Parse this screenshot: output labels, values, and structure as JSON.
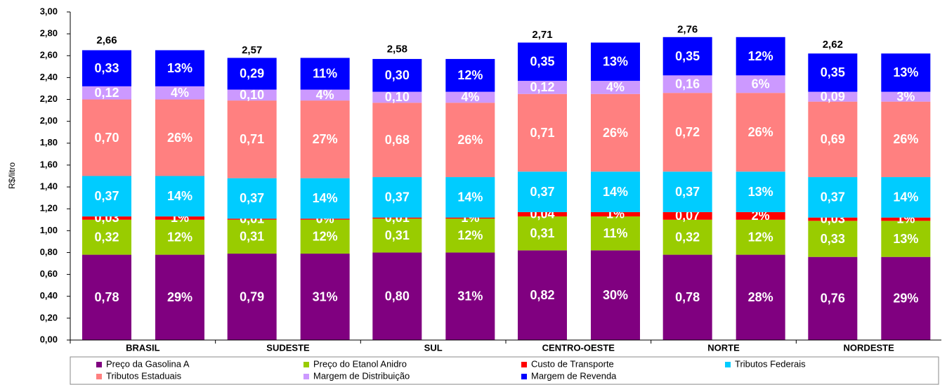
{
  "chart_data": {
    "type": "stacked_bar",
    "ylabel": "R$/litro",
    "ylim": [
      0,
      3
    ],
    "yticks": [
      {
        "value": 0,
        "label": "0,00"
      },
      {
        "value": 0.2,
        "label": "0,20"
      },
      {
        "value": 0.4,
        "label": "0,40"
      },
      {
        "value": 0.6,
        "label": "0,60"
      },
      {
        "value": 0.8,
        "label": "0,80"
      },
      {
        "value": 1.0,
        "label": "1,00"
      },
      {
        "value": 1.2,
        "label": "1,20"
      },
      {
        "value": 1.4,
        "label": "1,40"
      },
      {
        "value": 1.6,
        "label": "1,60"
      },
      {
        "value": 1.8,
        "label": "1,80"
      },
      {
        "value": 2.0,
        "label": "2,00"
      },
      {
        "value": 2.2,
        "label": "2,20"
      },
      {
        "value": 2.4,
        "label": "2,40"
      },
      {
        "value": 2.6,
        "label": "2,60"
      },
      {
        "value": 2.8,
        "label": "2,80"
      },
      {
        "value": 3.0,
        "label": "3,00"
      }
    ],
    "categories": [
      "BRASIL",
      "SUDESTE",
      "SUL",
      "CENTRO-OESTE",
      "NORTE",
      "NORDESTE"
    ],
    "totals": [
      2.66,
      2.57,
      2.58,
      2.71,
      2.76,
      2.62
    ],
    "total_labels": [
      "2,66",
      "2,57",
      "2,58",
      "2,71",
      "2,76",
      "2,62"
    ],
    "series": [
      {
        "name": "Preço da Gasolina A",
        "color": "#800080",
        "values": [
          0.78,
          0.79,
          0.8,
          0.82,
          0.78,
          0.76
        ],
        "value_labels": [
          "0,78",
          "0,79",
          "0,80",
          "0,82",
          "0,78",
          "0,76"
        ],
        "shares": [
          29,
          31,
          31,
          30,
          28,
          29
        ],
        "share_labels": [
          "29%",
          "31%",
          "31%",
          "30%",
          "28%",
          "29%"
        ]
      },
      {
        "name": "Preço do Etanol Anidro",
        "color": "#99cc00",
        "values": [
          0.32,
          0.31,
          0.31,
          0.31,
          0.32,
          0.33
        ],
        "value_labels": [
          "0,32",
          "0,31",
          "0,31",
          "0,31",
          "0,32",
          "0,33"
        ],
        "shares": [
          12,
          12,
          12,
          11,
          12,
          13
        ],
        "share_labels": [
          "12%",
          "12%",
          "12%",
          "11%",
          "12%",
          "13%"
        ]
      },
      {
        "name": "Custo de Transporte",
        "color": "#ff0000",
        "values": [
          0.03,
          0.01,
          0.01,
          0.04,
          0.07,
          0.03
        ],
        "value_labels": [
          "0,03",
          "0,01",
          "0,01",
          "0,04",
          "0,07",
          "0,03"
        ],
        "shares": [
          1,
          0,
          1,
          1,
          2,
          1
        ],
        "share_labels": [
          "1%",
          "0%",
          "1%",
          "1%",
          "2%",
          "1%"
        ]
      },
      {
        "name": "Tributos Federais",
        "color": "#00ccff",
        "values": [
          0.37,
          0.37,
          0.37,
          0.37,
          0.37,
          0.37
        ],
        "value_labels": [
          "0,37",
          "0,37",
          "0,37",
          "0,37",
          "0,37",
          "0,37"
        ],
        "shares": [
          14,
          14,
          14,
          14,
          13,
          14
        ],
        "share_labels": [
          "14%",
          "14%",
          "14%",
          "14%",
          "13%",
          "14%"
        ]
      },
      {
        "name": "Tributos Estaduais",
        "color": "#ff8080",
        "values": [
          0.7,
          0.71,
          0.68,
          0.71,
          0.72,
          0.69
        ],
        "value_labels": [
          "0,70",
          "0,71",
          "0,68",
          "0,71",
          "0,72",
          "0,69"
        ],
        "shares": [
          26,
          27,
          26,
          26,
          26,
          26
        ],
        "share_labels": [
          "26%",
          "27%",
          "26%",
          "26%",
          "26%",
          "26%"
        ]
      },
      {
        "name": "Margem de Distribuição",
        "color": "#cc99ff",
        "values": [
          0.12,
          0.1,
          0.1,
          0.12,
          0.16,
          0.09
        ],
        "value_labels": [
          "0,12",
          "0,10",
          "0,10",
          "0,12",
          "0,16",
          "0,09"
        ],
        "shares": [
          4,
          4,
          4,
          4,
          6,
          3
        ],
        "share_labels": [
          "4%",
          "4%",
          "4%",
          "4%",
          "6%",
          "3%"
        ]
      },
      {
        "name": "Margem de Revenda",
        "color": "#0000ff",
        "values": [
          0.33,
          0.29,
          0.3,
          0.35,
          0.35,
          0.35
        ],
        "value_labels": [
          "0,33",
          "0,29",
          "0,30",
          "0,35",
          "0,35",
          "0,35"
        ],
        "shares": [
          13,
          11,
          12,
          13,
          12,
          13
        ],
        "share_labels": [
          "13%",
          "11%",
          "12%",
          "13%",
          "12%",
          "13%"
        ]
      }
    ]
  }
}
